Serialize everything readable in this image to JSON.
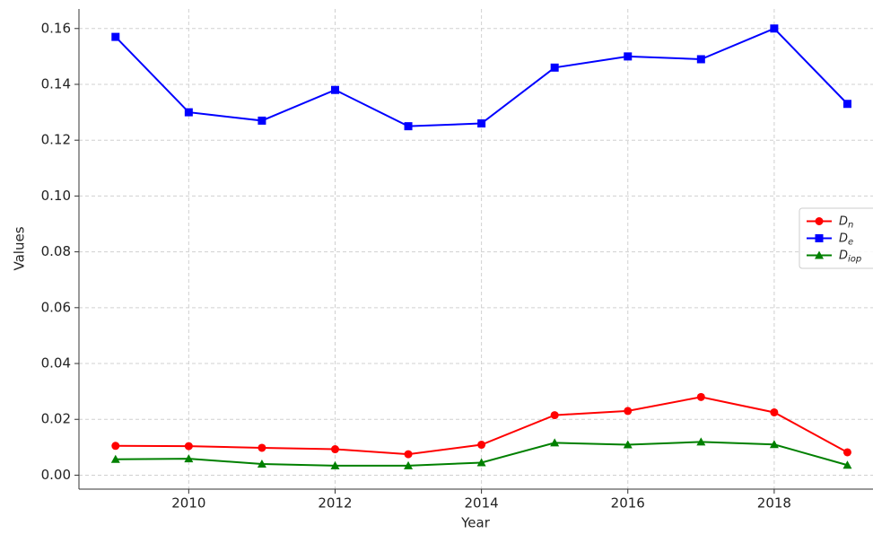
{
  "chart_data": {
    "type": "line",
    "x_label": "Year",
    "y_label": "Values",
    "x": [
      2009,
      2010,
      2011,
      2012,
      2013,
      2014,
      2015,
      2016,
      2017,
      2018,
      2019
    ],
    "series": [
      {
        "name": "D_n",
        "color": "#ff0000",
        "marker": "circle",
        "values": [
          0.0105,
          0.0104,
          0.0098,
          0.0093,
          0.0075,
          0.0109,
          0.0215,
          0.023,
          0.028,
          0.0225,
          0.0082
        ]
      },
      {
        "name": "D_e",
        "color": "#0000ff",
        "marker": "square",
        "values": [
          0.157,
          0.13,
          0.127,
          0.138,
          0.125,
          0.126,
          0.146,
          0.15,
          0.149,
          0.16,
          0.133
        ]
      },
      {
        "name": "D_iop",
        "color": "#008000",
        "marker": "triangle",
        "values": [
          0.0057,
          0.0059,
          0.004,
          0.0034,
          0.0034,
          0.0045,
          0.0116,
          0.0109,
          0.0119,
          0.011,
          0.0036
        ]
      }
    ],
    "xlim": [
      2008.5,
      2019.35
    ],
    "ylim": [
      -0.005,
      0.167
    ],
    "xticks": [
      2010,
      2012,
      2014,
      2016,
      2018
    ],
    "yticks": [
      {
        "value": 0,
        "label": "0.00"
      },
      {
        "value": 0.02,
        "label": "0.02"
      },
      {
        "value": 0.04,
        "label": "0.04"
      },
      {
        "value": 0.06,
        "label": "0.06"
      },
      {
        "value": 0.08,
        "label": "0.08"
      },
      {
        "value": 0.1,
        "label": "0.10"
      },
      {
        "value": 0.12,
        "label": "0.12"
      },
      {
        "value": 0.14,
        "label": "0.14"
      },
      {
        "value": 0.16,
        "label": "0.16"
      }
    ],
    "grid": true,
    "legend": "center right"
  }
}
